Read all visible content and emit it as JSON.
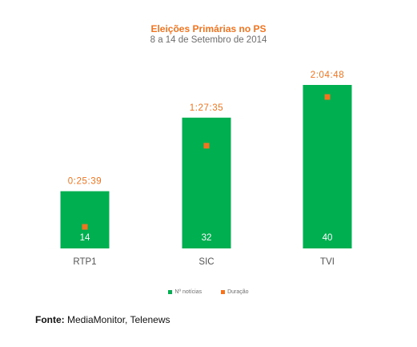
{
  "chart_data": {
    "type": "bar",
    "title": "Eleições Primárias no PS",
    "subtitle": "8 a 14 de Setembro de 2014",
    "categories": [
      "RTP1",
      "SIC",
      "TVI"
    ],
    "series": [
      {
        "name": "Nº notícias",
        "type": "bar",
        "values": [
          14,
          32,
          40
        ],
        "color": "#00b050"
      },
      {
        "name": "Duração",
        "type": "marker",
        "values_seconds": [
          1539,
          5255,
          7488
        ],
        "labels": [
          "0:25:39",
          "1:27:35",
          "2:04:48"
        ],
        "color": "#f27421"
      }
    ],
    "legend": "bottom",
    "grid": false
  },
  "source": {
    "label": "Fonte:",
    "text": "MediaMonitor, Telenews"
  }
}
